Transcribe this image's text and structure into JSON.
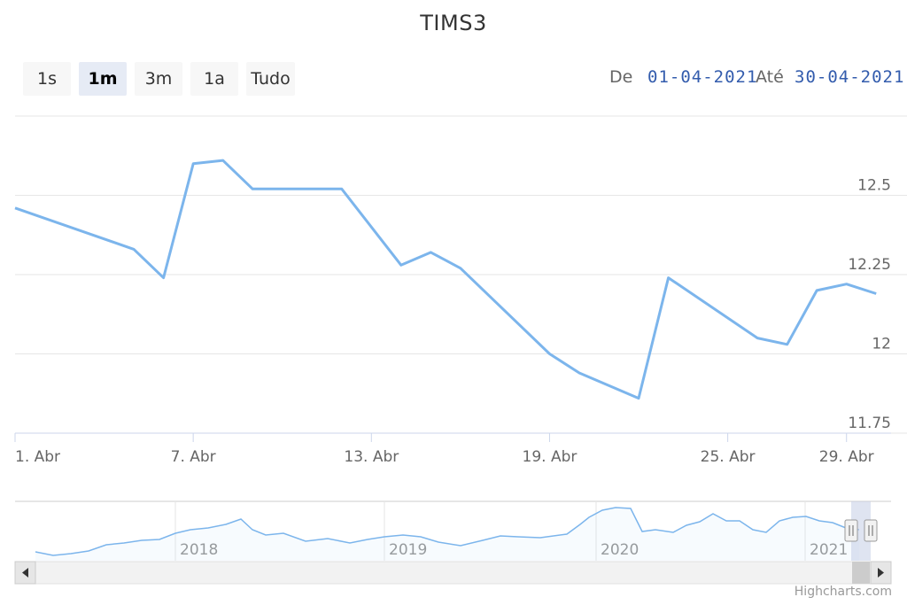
{
  "title": "TIMS3",
  "range_selector": {
    "buttons": [
      "1s",
      "1m",
      "3m",
      "1a",
      "Tudo"
    ],
    "selected": "1m",
    "from_label": "De",
    "from_value": "01-04-2021",
    "to_label": "Até",
    "to_value": "30-04-2021"
  },
  "credits": "Highcharts.com",
  "colors": {
    "series": "#7cb5ec",
    "navigator_handle": "#f2f2f2",
    "mask": "#c5cde6"
  },
  "chart_data": {
    "type": "line",
    "series": [
      {
        "x": [
          "01-04-2021",
          "05-04-2021",
          "06-04-2021",
          "07-04-2021",
          "08-04-2021",
          "09-04-2021",
          "12-04-2021",
          "13-04-2021",
          "14-04-2021",
          "15-04-2021",
          "16-04-2021",
          "19-04-2021",
          "20-04-2021",
          "22-04-2021",
          "23-04-2021",
          "26-04-2021",
          "27-04-2021",
          "28-04-2021",
          "29-04-2021",
          "30-04-2021"
        ],
        "values": [
          12.46,
          12.33,
          12.24,
          12.6,
          12.61,
          12.52,
          12.52,
          12.4,
          12.28,
          12.32,
          12.27,
          12.0,
          11.94,
          11.86,
          12.24,
          12.05,
          12.03,
          12.2,
          12.22,
          12.19
        ]
      }
    ],
    "ylim": [
      11.75,
      12.75
    ],
    "yticks": [
      "11.75",
      "12",
      "12.25",
      "12.5"
    ],
    "xticks": [
      "1. Abr",
      "7. Abr",
      "13. Abr",
      "19. Abr",
      "25. Abr",
      "29. Abr"
    ],
    "grid": true,
    "navigator": {
      "labels": [
        "2018",
        "2019",
        "2020",
        "2021"
      ]
    }
  }
}
